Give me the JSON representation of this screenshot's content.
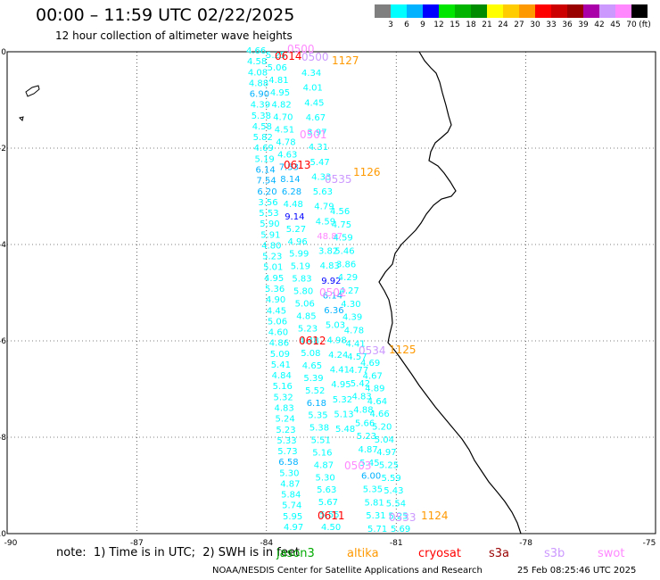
{
  "title": "00:00 – 11:59 UTC 02/22/2025",
  "subtitle": "12 hour collection of altimeter wave heights",
  "legend": {
    "unit": "(ft)",
    "bins": [
      {
        "label": "3",
        "color": "#7f7f7f"
      },
      {
        "label": "6",
        "color": "#00ffff"
      },
      {
        "label": "9",
        "color": "#00b2ff"
      },
      {
        "label": "12",
        "color": "#0000ff"
      },
      {
        "label": "15",
        "color": "#00e600"
      },
      {
        "label": "18",
        "color": "#00b400"
      },
      {
        "label": "21",
        "color": "#008c00"
      },
      {
        "label": "24",
        "color": "#ffff00"
      },
      {
        "label": "27",
        "color": "#ffcc00"
      },
      {
        "label": "30",
        "color": "#ff9900"
      },
      {
        "label": "33",
        "color": "#ff0000"
      },
      {
        "label": "36",
        "color": "#cc0000"
      },
      {
        "label": "39",
        "color": "#990000"
      },
      {
        "label": "42",
        "color": "#aa00aa"
      },
      {
        "label": "45",
        "color": "#cc99ff"
      },
      {
        "label": "70",
        "color": "#ff88ff"
      },
      {
        "label": "",
        "color": "#000000"
      }
    ]
  },
  "axes": {
    "x_ticks": [
      "-90",
      "-87",
      "-84",
      "-81",
      "-78",
      "-75"
    ],
    "y_ticks": [
      "0",
      "-2",
      "-4",
      "-6",
      "-8",
      "-10"
    ]
  },
  "passes": [
    {
      "time": "0500",
      "sat": "swot",
      "color": "#ff88ff"
    },
    {
      "time": "0614",
      "sat": "cryosat",
      "color": "#ff0000"
    },
    {
      "time": "0500",
      "sat": "s3b",
      "color": "#cc99ff"
    },
    {
      "time": "1127",
      "sat": "altika",
      "color": "#ff9900"
    },
    {
      "time": "0501",
      "sat": "swot",
      "color": "#ff88ff"
    },
    {
      "time": "0613",
      "sat": "cryosat",
      "color": "#ff0000"
    },
    {
      "time": "1126",
      "sat": "altika",
      "color": "#ff9900"
    },
    {
      "time": "0535",
      "sat": "s3b",
      "color": "#cc99ff"
    },
    {
      "time": "0502",
      "sat": "swot",
      "color": "#ff88ff"
    },
    {
      "time": "0612",
      "sat": "cryosat",
      "color": "#ff0000"
    },
    {
      "time": "0534",
      "sat": "s3b",
      "color": "#cc99ff"
    },
    {
      "time": "1125",
      "sat": "altika",
      "color": "#ff9900"
    },
    {
      "time": "0503",
      "sat": "swot",
      "color": "#ff88ff"
    },
    {
      "time": "0611",
      "sat": "cryosat",
      "color": "#ff0000"
    },
    {
      "time": "0533",
      "sat": "s3b",
      "color": "#cc99ff"
    },
    {
      "time": "1124",
      "sat": "altika",
      "color": "#ff9900"
    }
  ],
  "tracks": [
    {
      "values": [
        "4.66",
        "4.58",
        "4.08",
        "4.88",
        "6.90",
        "4.39",
        "5.38",
        "4.58",
        "5.82",
        "4.69",
        "5.19",
        "6.14",
        "7.54",
        "6.20",
        "3.56",
        "5.53",
        "5.90",
        "5.91",
        "4.80",
        "5.23",
        "5.01",
        "4.95",
        "5.36",
        "4.90",
        "4.45",
        "5.06",
        "4.60",
        "4.86",
        "5.09",
        "5.41",
        "4.84",
        "5.16",
        "5.32",
        "4.83",
        "5.24",
        "5.23",
        "5.33",
        "5.73",
        "6.58",
        "5.30",
        "4.87",
        "5.84",
        "5.74",
        "5.95",
        "4.97"
      ]
    },
    {
      "values": [
        "5.25",
        "5.06",
        "4.81",
        "4.95",
        "4.82",
        "4.70",
        "4.51",
        "4.78",
        "4.63",
        "7.53",
        "8.14",
        "6.28",
        "4.48",
        "9.14",
        "5.27",
        "4.96",
        "5.99",
        "5.19",
        "5.83",
        "5.80",
        "5.06",
        "4.85",
        "5.23",
        "4.48",
        "5.08",
        "4.65",
        "5.39",
        "5.52",
        "6.18",
        "5.35",
        "5.38",
        "5.51",
        "5.16",
        "4.87",
        "5.30",
        "5.63",
        "5.67",
        "5.55",
        "4.50"
      ]
    },
    {
      "values": [
        "4.34",
        "4.01",
        "4.45",
        "4.67",
        "3.97",
        "4.31",
        "5.47",
        "4.33",
        "5.63",
        "4.79",
        "4.59",
        "48.87",
        "3.82",
        "4.83",
        "9.92",
        "6.14",
        "6.36",
        "5.03",
        "4.98",
        "4.24",
        "4.41",
        "4.95",
        "5.32",
        "5.13",
        "5.48"
      ]
    },
    {
      "values": [
        "4.56",
        "4.75",
        "4.59",
        "5.46",
        "3.86",
        "4.29",
        "4.27",
        "4.30",
        "4.39",
        "4.78",
        "4.41",
        "4.57",
        "4.77",
        "5.42",
        "4.83",
        "4.88",
        "5.66",
        "5.23",
        "4.87",
        "5.45",
        "6.00",
        "5.35",
        "5.81",
        "5.31",
        "5.71"
      ]
    },
    {
      "values": [
        "4.69",
        "4.67",
        "4.89",
        "4.64",
        "4.66",
        "5.20",
        "5.04",
        "4.97",
        "5.25",
        "5.59",
        "5.43",
        "5.54",
        "5.25",
        "5.69"
      ]
    }
  ],
  "note": "note:  1) Time is in UTC;  2) SWH is in feet",
  "satellites": [
    {
      "name": "jason3",
      "color": "#00aa00"
    },
    {
      "name": "altika",
      "color": "#ff9900"
    },
    {
      "name": "cryosat",
      "color": "#ff0000"
    },
    {
      "name": "s3a",
      "color": "#990000"
    },
    {
      "name": "s3b",
      "color": "#cc99ff"
    },
    {
      "name": "swot",
      "color": "#ff88ff"
    }
  ],
  "footer": {
    "credit": "NOAA/NESDIS Center for Satellite Applications and Research",
    "timestamp": "25 Feb 08:25:46 UTC 2025"
  }
}
